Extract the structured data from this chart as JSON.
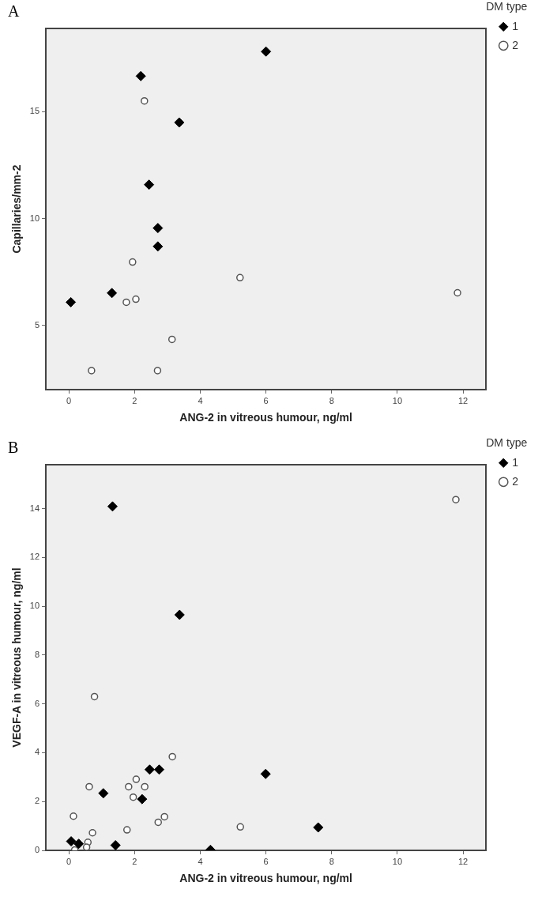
{
  "chart_data": [
    {
      "type": "scatter",
      "title": "A",
      "xlabel": "ANG-2 in vitreous humour, ng/ml",
      "ylabel": "Capillaries/mm-2",
      "legend_title": "DM type",
      "legend": "top right",
      "grid": false,
      "xlim": [
        -0.7,
        12.7
      ],
      "xticks": [
        0,
        2,
        4,
        6,
        8,
        10,
        12
      ],
      "ylim": [
        2,
        18.9
      ],
      "yticks": [
        5,
        10,
        15
      ],
      "series": [
        {
          "name": "1",
          "color": "#000000",
          "marker": "diamond",
          "x": [
            6.0,
            2.19,
            3.36,
            2.44,
            2.71,
            2.71,
            1.31,
            0.06
          ],
          "values": [
            17.82,
            16.67,
            14.5,
            11.59,
            9.56,
            8.7,
            6.52,
            6.09
          ]
        },
        {
          "name": "2",
          "color": "#555555",
          "marker": "circle",
          "x": [
            2.3,
            1.94,
            5.21,
            2.04,
            1.75,
            3.14,
            0.69,
            2.7,
            11.83
          ],
          "values": [
            15.51,
            7.97,
            7.24,
            6.23,
            6.09,
            4.35,
            2.89,
            2.89,
            6.53
          ]
        }
      ]
    },
    {
      "type": "scatter",
      "title": "B",
      "xlabel": "ANG-2 in vitreous humour, ng/ml",
      "ylabel": "VEGF-A in vitreous humour, ng/ml",
      "legend_title": "DM type",
      "legend": "top right",
      "grid": false,
      "xlim": [
        -0.7,
        12.7
      ],
      "xticks": [
        0,
        2,
        4,
        6,
        8,
        10,
        12
      ],
      "ylim": [
        0,
        15.8
      ],
      "yticks": [
        0,
        2,
        4,
        6,
        8,
        10,
        12,
        14
      ],
      "series": [
        {
          "name": "1",
          "color": "#000000",
          "marker": "diamond",
          "x": [
            1.33,
            3.37,
            2.46,
            2.75,
            5.99,
            1.05,
            2.23,
            0.07,
            0.3,
            1.42,
            4.31,
            7.59
          ],
          "values": [
            14.09,
            9.65,
            3.31,
            3.31,
            3.13,
            2.34,
            2.1,
            0.37,
            0.27,
            0.21,
            0.02,
            0.94
          ]
        },
        {
          "name": "2",
          "color": "#555555",
          "marker": "circle",
          "x": [
            0.78,
            3.15,
            2.05,
            0.62,
            1.82,
            2.31,
            1.96,
            0.14,
            2.91,
            2.72,
            1.77,
            0.72,
            0.58,
            0.54,
            0.18,
            5.22,
            11.78
          ],
          "values": [
            6.3,
            3.84,
            2.91,
            2.61,
            2.61,
            2.61,
            2.18,
            1.4,
            1.38,
            1.15,
            0.84,
            0.72,
            0.33,
            0.13,
            0.02,
            0.96,
            14.37
          ]
        }
      ]
    }
  ]
}
